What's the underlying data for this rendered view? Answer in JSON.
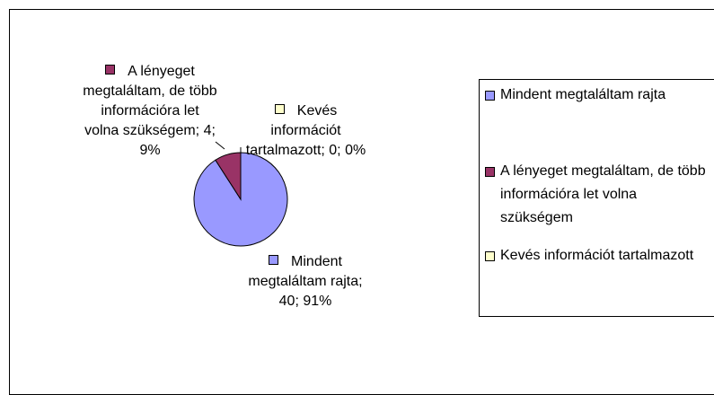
{
  "chart_data": {
    "type": "pie",
    "categories": [
      "Mindent megtaláltam rajta",
      "A lényeget megtaláltam, de több információra let volna szükségem",
      "Kevés információt tartalmazott"
    ],
    "values": [
      40,
      4,
      0
    ],
    "value_labels": [
      "Mindent megtaláltam rajta; 40; 91%",
      "A lényeget megtaláltam, de több információra let volna szükségem; 4; 9%",
      "Kevés információt tartalmazott; 0; 0%"
    ],
    "colors": [
      "#9999ff",
      "#993366",
      "#ffffcc"
    ],
    "legend": "right"
  }
}
